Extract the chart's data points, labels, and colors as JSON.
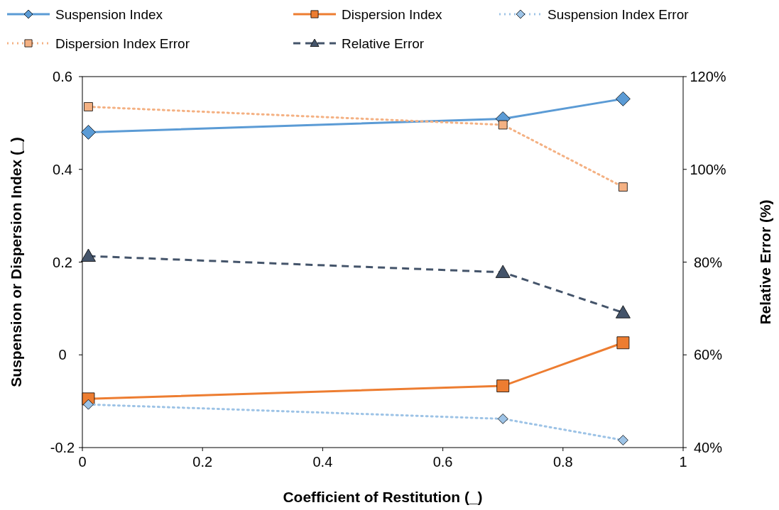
{
  "chart_data": {
    "type": "line",
    "xlabel": "Coefficient of Restitution (_)",
    "ylabel": "Suspension or Dispersion Index (_)",
    "y2label": "Relative Error (%)",
    "x": [
      0.01,
      0.7,
      0.9
    ],
    "xlim": [
      0,
      1
    ],
    "xticks": [
      0,
      0.2,
      0.4,
      0.6,
      0.8,
      1
    ],
    "ylim": [
      -0.2,
      0.6
    ],
    "yticks": [
      {
        "value": -0.2,
        "label": "-0.2"
      },
      0,
      0.2,
      0.4,
      0.6
    ],
    "y2lim": [
      40,
      120
    ],
    "y2ticks": [
      {
        "value": 40,
        "label": "40%"
      },
      {
        "value": 60,
        "label": "60%"
      },
      {
        "value": 80,
        "label": "80%"
      },
      {
        "value": 100,
        "label": "100%"
      },
      {
        "value": 120,
        "label": "120%"
      }
    ],
    "grid": false,
    "legend": "top",
    "series": [
      {
        "name": "Suspension Index",
        "color": "#5b9bd5",
        "values": [
          0.48,
          0.509,
          0.552
        ],
        "marker": "diamond",
        "line_style": "solid"
      },
      {
        "name": "Dispersion Index",
        "color": "#ed7d31",
        "values": [
          -0.095,
          -0.067,
          0.026
        ],
        "marker": "square",
        "line_style": "solid"
      },
      {
        "name": "Suspension Index Error",
        "color": "#9dc3e6",
        "values": [
          -0.107,
          -0.138,
          -0.184
        ],
        "marker": "diamond",
        "line_style": "dotted"
      },
      {
        "name": "Dispersion Index Error",
        "color": "#f4b183",
        "values": [
          0.535,
          0.496,
          0.362
        ],
        "marker": "square",
        "line_style": "dotted"
      },
      {
        "name": "Relative Error",
        "color": "#44546a",
        "values": [
          81.3,
          77.8,
          69.1
        ],
        "marker": "triangle",
        "line_style": "dashed",
        "axis": "y2"
      }
    ]
  }
}
